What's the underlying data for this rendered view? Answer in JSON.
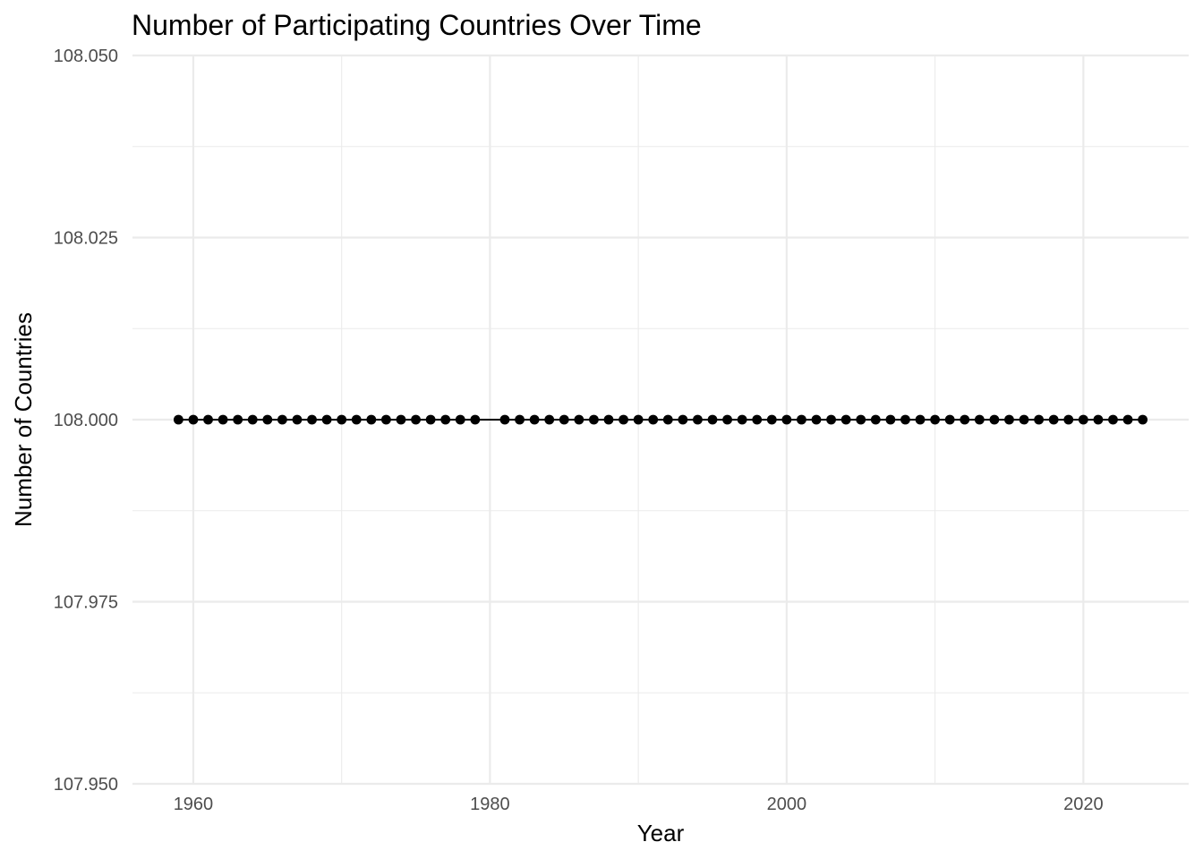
{
  "chart_data": {
    "type": "line",
    "title": "Number of Participating Countries Over Time",
    "xlabel": "Year",
    "ylabel": "Number of Countries",
    "xlim": [
      1955.9,
      2027.1
    ],
    "ylim": [
      107.95,
      108.05
    ],
    "x_ticks": [
      1960,
      1980,
      2000,
      2020
    ],
    "x_minor_ticks": [
      1970,
      1990,
      2010
    ],
    "y_ticks": [
      107.95,
      107.975,
      108.0,
      108.025,
      108.05
    ],
    "y_tick_labels": [
      "107.950",
      "107.975",
      "108.000",
      "108.025",
      "108.050"
    ],
    "y_minor_ticks": [
      107.9625,
      107.9875,
      108.0125,
      108.0375
    ],
    "grid": true,
    "legend": "none",
    "series": [
      {
        "x": [
          1959,
          1960,
          1961,
          1962,
          1963,
          1964,
          1965,
          1966,
          1967,
          1968,
          1969,
          1970,
          1971,
          1972,
          1973,
          1974,
          1975,
          1976,
          1977,
          1978,
          1979,
          1981,
          1982,
          1983,
          1984,
          1985,
          1986,
          1987,
          1988,
          1989,
          1990,
          1991,
          1992,
          1993,
          1994,
          1995,
          1996,
          1997,
          1998,
          1999,
          2000,
          2001,
          2002,
          2003,
          2004,
          2005,
          2006,
          2007,
          2008,
          2009,
          2010,
          2011,
          2012,
          2013,
          2014,
          2015,
          2016,
          2017,
          2018,
          2019,
          2020,
          2021,
          2022,
          2023,
          2024
        ],
        "y": [
          108,
          108,
          108,
          108,
          108,
          108,
          108,
          108,
          108,
          108,
          108,
          108,
          108,
          108,
          108,
          108,
          108,
          108,
          108,
          108,
          108,
          108,
          108,
          108,
          108,
          108,
          108,
          108,
          108,
          108,
          108,
          108,
          108,
          108,
          108,
          108,
          108,
          108,
          108,
          108,
          108,
          108,
          108,
          108,
          108,
          108,
          108,
          108,
          108,
          108,
          108,
          108,
          108,
          108,
          108,
          108,
          108,
          108,
          108,
          108,
          108,
          108,
          108,
          108,
          108
        ]
      }
    ]
  }
}
